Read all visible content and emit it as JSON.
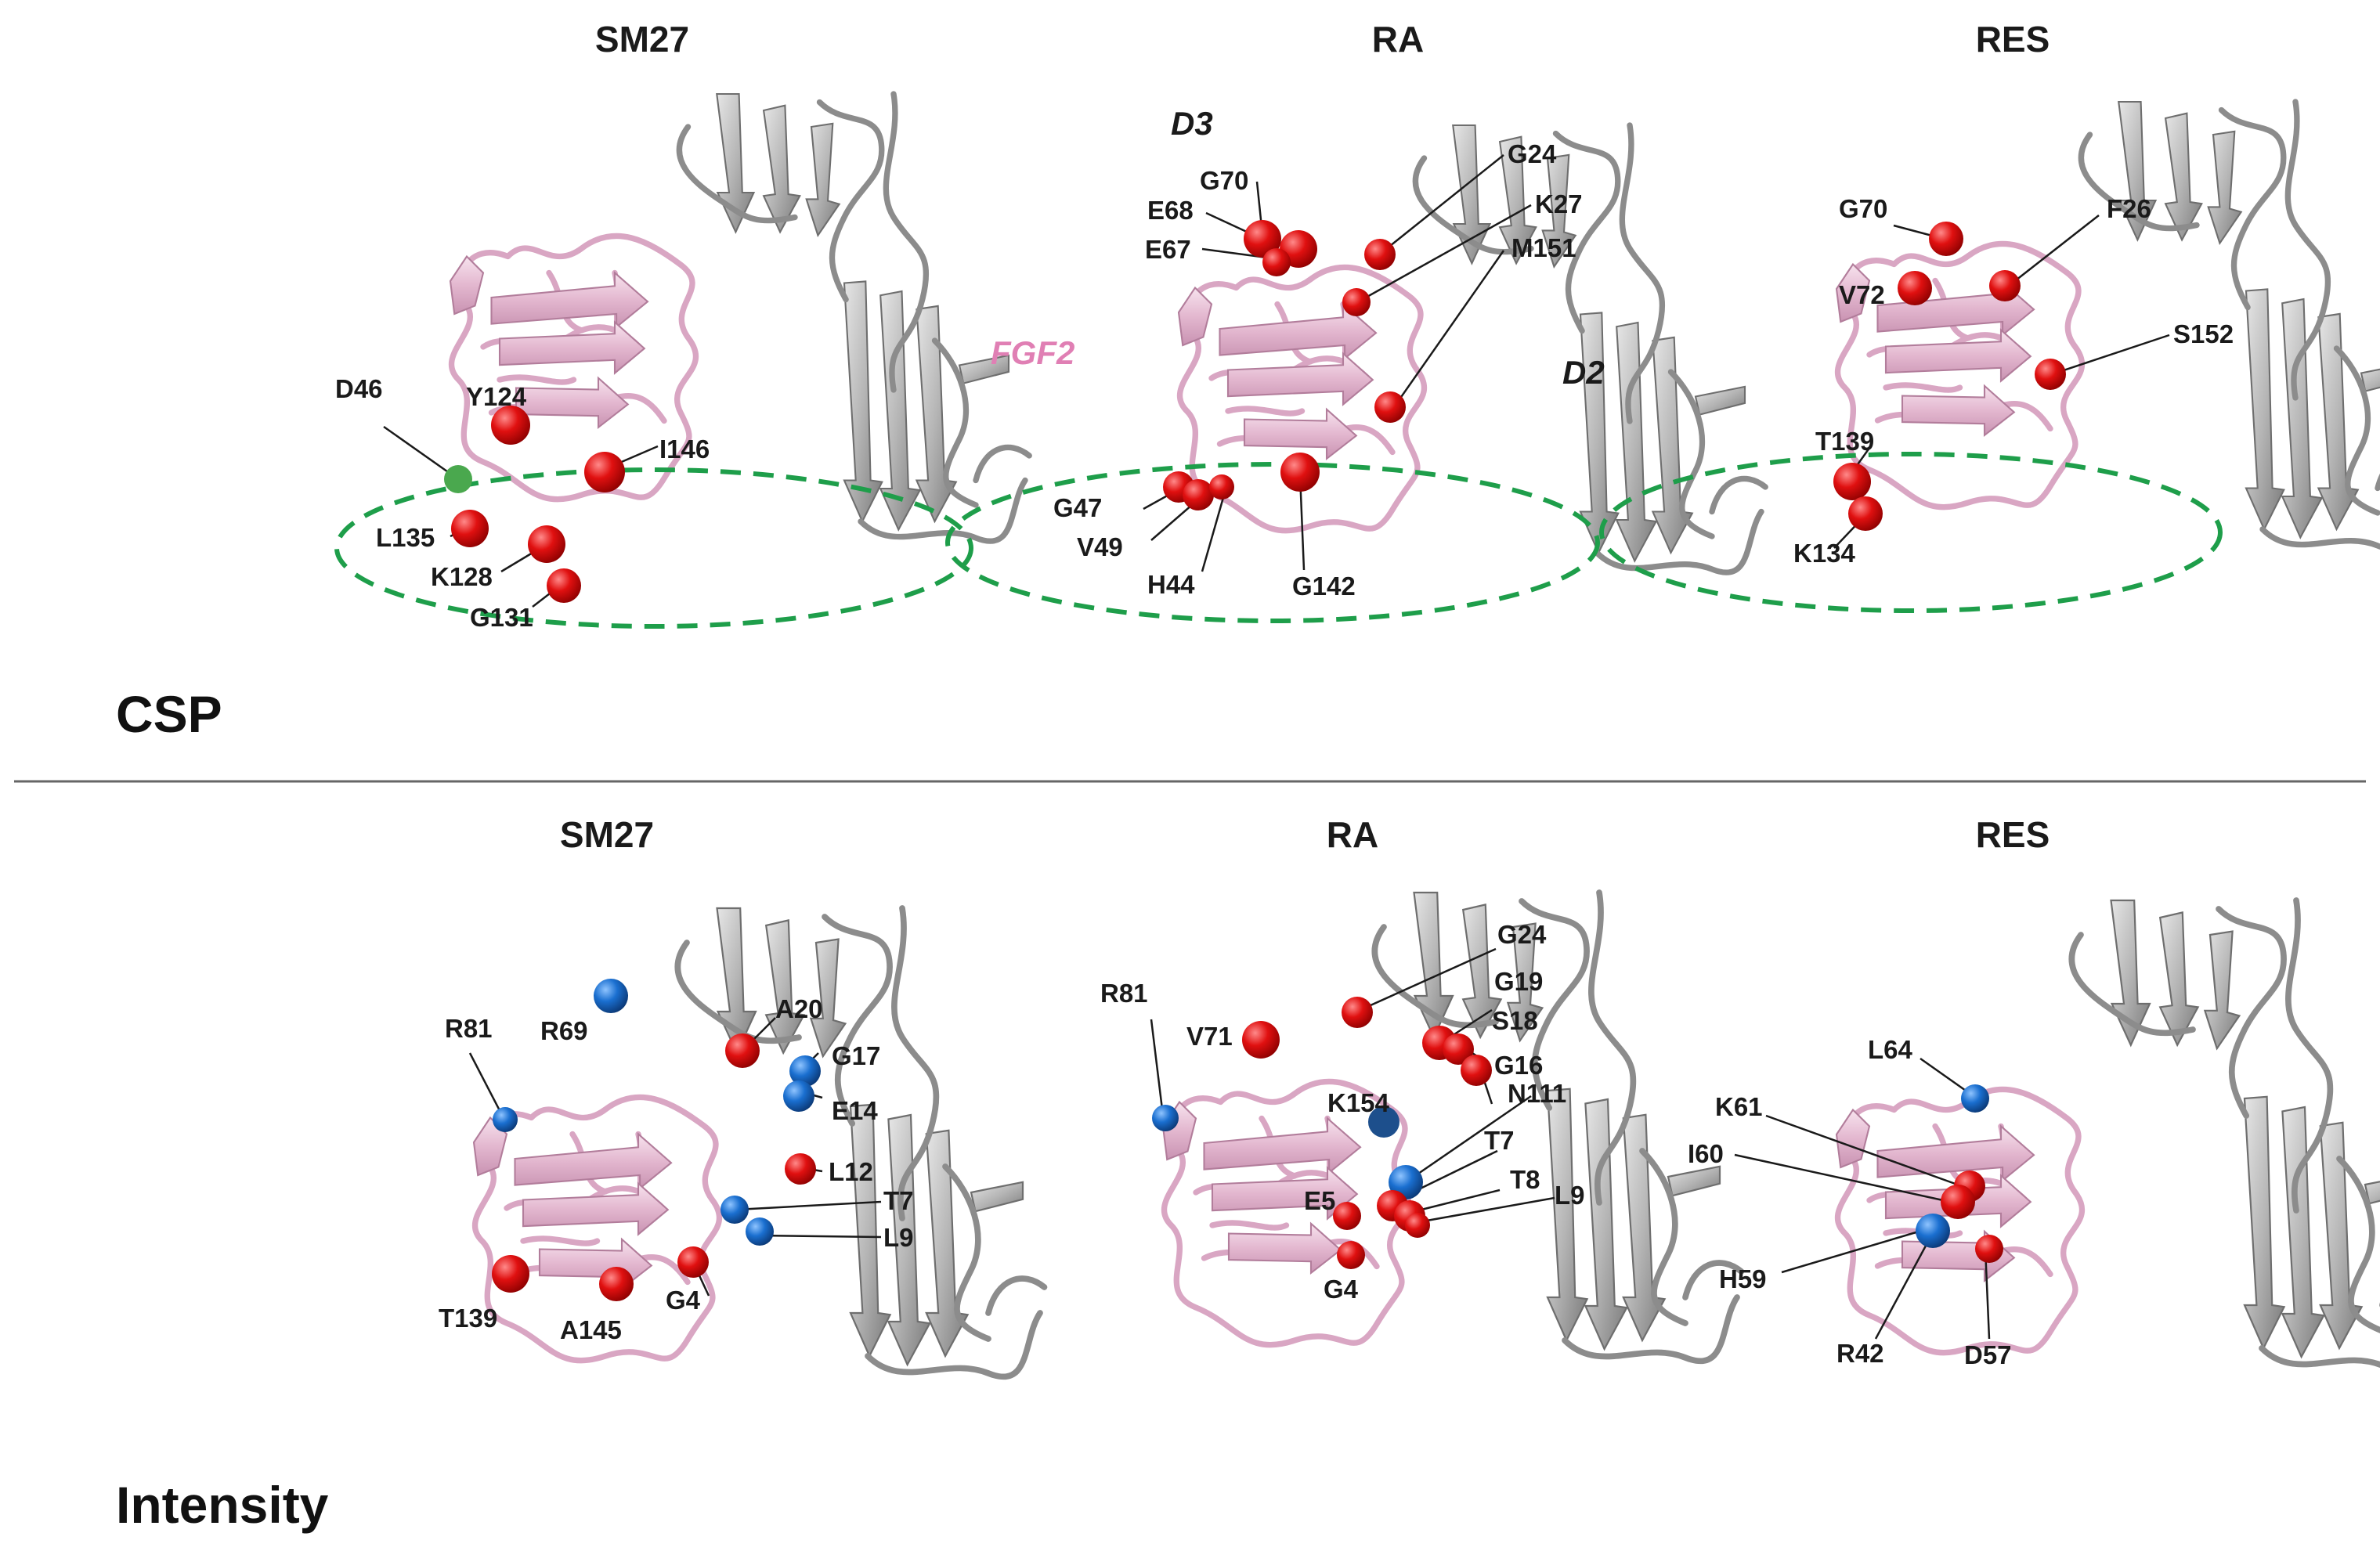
{
  "colors": {
    "fgf2_ribbon": "#e3b7cf",
    "receptor_ribbon": "#9a9a9a",
    "red_residue": "#e01010",
    "blue_residue": "#1a6fd0",
    "oval": "#1e9e4a",
    "fgf2_label": "#e07fb4"
  },
  "row_labels": {
    "csp": "CSP",
    "intensity": "Intensity"
  },
  "csp": {
    "panels": [
      {
        "title": "SM27",
        "residues": [
          {
            "label": "D46",
            "color": "red"
          },
          {
            "label": "Y124",
            "color": "red"
          },
          {
            "label": "I146",
            "color": "red"
          },
          {
            "label": "L135",
            "color": "red"
          },
          {
            "label": "K128",
            "color": "red"
          },
          {
            "label": "G131",
            "color": "red"
          }
        ]
      },
      {
        "title": "RA",
        "domains": {
          "d3": "D3",
          "d2": "D2",
          "fgf2": "FGF2"
        },
        "residues": [
          {
            "label": "G70",
            "color": "red"
          },
          {
            "label": "E68",
            "color": "red"
          },
          {
            "label": "E67",
            "color": "red"
          },
          {
            "label": "G24",
            "color": "red"
          },
          {
            "label": "K27",
            "color": "red"
          },
          {
            "label": "M151",
            "color": "red"
          },
          {
            "label": "G47",
            "color": "red"
          },
          {
            "label": "V49",
            "color": "red"
          },
          {
            "label": "H44",
            "color": "red"
          },
          {
            "label": "G142",
            "color": "red"
          }
        ]
      },
      {
        "title": "RES",
        "residues": [
          {
            "label": "G70",
            "color": "red"
          },
          {
            "label": "F26",
            "color": "red"
          },
          {
            "label": "V72",
            "color": "red"
          },
          {
            "label": "S152",
            "color": "red"
          },
          {
            "label": "T139",
            "color": "red"
          },
          {
            "label": "K134",
            "color": "red"
          }
        ]
      }
    ]
  },
  "intensity": {
    "panels": [
      {
        "title": "SM27",
        "residues": [
          {
            "label": "R81",
            "color": "blue"
          },
          {
            "label": "R69",
            "color": "blue"
          },
          {
            "label": "A20",
            "color": "red"
          },
          {
            "label": "G17",
            "color": "blue"
          },
          {
            "label": "E14",
            "color": "blue"
          },
          {
            "label": "L12",
            "color": "red"
          },
          {
            "label": "T7",
            "color": "blue"
          },
          {
            "label": "L9",
            "color": "blue"
          },
          {
            "label": "T139",
            "color": "red"
          },
          {
            "label": "A145",
            "color": "red"
          },
          {
            "label": "G4",
            "color": "red"
          }
        ]
      },
      {
        "title": "RA",
        "residues": [
          {
            "label": "G24",
            "color": "red"
          },
          {
            "label": "R81",
            "color": "blue"
          },
          {
            "label": "G19",
            "color": "red"
          },
          {
            "label": "V71",
            "color": "red"
          },
          {
            "label": "S18",
            "color": "red"
          },
          {
            "label": "G16",
            "color": "red"
          },
          {
            "label": "K154",
            "color": "blue"
          },
          {
            "label": "N111",
            "color": "blue"
          },
          {
            "label": "T7",
            "color": "red"
          },
          {
            "label": "T8",
            "color": "red"
          },
          {
            "label": "L9",
            "color": "red"
          },
          {
            "label": "E5",
            "color": "red"
          },
          {
            "label": "G4",
            "color": "red"
          }
        ]
      },
      {
        "title": "RES",
        "residues": [
          {
            "label": "L64",
            "color": "blue"
          },
          {
            "label": "K61",
            "color": "red"
          },
          {
            "label": "I60",
            "color": "red"
          },
          {
            "label": "H59",
            "color": "blue"
          },
          {
            "label": "R42",
            "color": "blue"
          },
          {
            "label": "D57",
            "color": "red"
          }
        ]
      }
    ]
  }
}
